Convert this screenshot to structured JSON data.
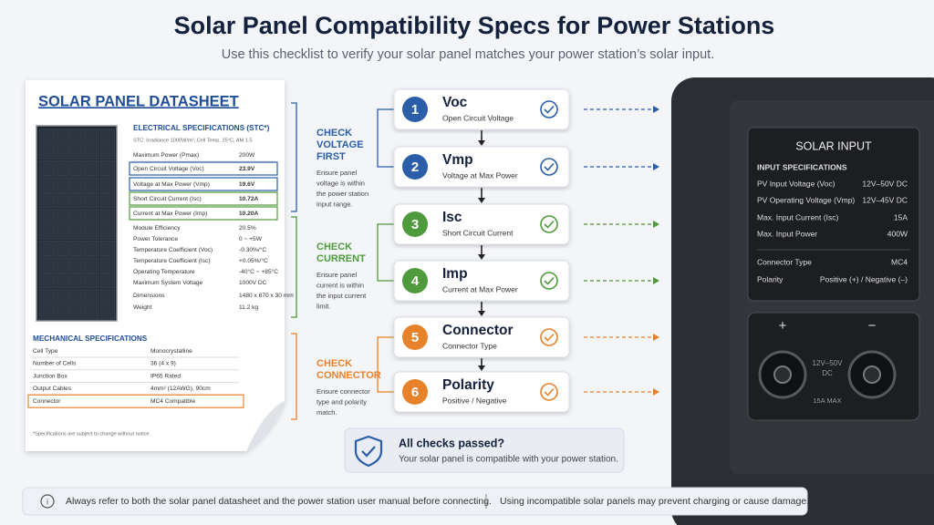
{
  "title": "Solar Panel Compatibility Specs for Power Stations",
  "subtitle": "Use this checklist to verify your solar panel matches your power station’s solar input.",
  "datasheet": {
    "title": "SOLAR PANEL DATASHEET",
    "electrical_heading": "ELECTRICAL SPECIFICATIONS (STC*)",
    "stc_note": "STC: Irradiance 1000W/m², Cell Temp. 25°C, AM 1.5",
    "electrical_rows": [
      [
        "Maximum Power (Pmax)",
        "200W"
      ],
      [
        "Open Circuit Voltage (Voc)",
        "23.9V"
      ],
      [
        "Voltage at Max Power (Vmp)",
        "19.6V"
      ],
      [
        "Short Circuit Current (Isc)",
        "10.72A"
      ],
      [
        "Current at Max Power (Imp)",
        "10.20A"
      ],
      [
        "Module Efficiency",
        "20.5%"
      ],
      [
        "Power Tolerance",
        "0 ~ +5W"
      ],
      [
        "Temperature Coefficient (Voc)",
        "-0.30%/°C"
      ],
      [
        "Temperature Coefficient (Isc)",
        "+0.05%/°C"
      ],
      [
        "Operating Temperature",
        "-40°C ~ +85°C"
      ],
      [
        "Maximum System Voltage",
        "1000V DC"
      ],
      [
        "Dimensions",
        "1480 x 670 x 30 mm"
      ],
      [
        "Weight",
        "11.2 kg"
      ]
    ],
    "mechanical_heading": "MECHANICAL SPECIFICATIONS",
    "mechanical_rows": [
      [
        "Cell Type",
        "Monocrystalline"
      ],
      [
        "Number of Cells",
        "36 (4 x 9)"
      ],
      [
        "Junction Box",
        "IP65 Rated"
      ],
      [
        "Output Cables",
        "4mm² (12AWG), 90cm"
      ],
      [
        "Connector",
        "MC4 Compatible"
      ]
    ],
    "footnote": "*Specifications are subject to change without notice."
  },
  "groups": [
    {
      "title": [
        "CHECK",
        "VOLTAGE",
        "FIRST"
      ],
      "text": [
        "Ensure panel",
        "voltage is within",
        "the power station",
        "input range."
      ],
      "color": "#2a5ea8"
    },
    {
      "title": [
        "CHECK",
        "CURRENT"
      ],
      "text": [
        "Ensure panel",
        "current is within",
        "the input current",
        "limit."
      ],
      "color": "#4f9a3c"
    },
    {
      "title": [
        "CHECK",
        "CONNECTOR"
      ],
      "text": [
        "Ensure connector",
        "type and polarity",
        "match."
      ],
      "color": "#e8822a"
    }
  ],
  "steps": [
    {
      "number": 1,
      "name": "Voc",
      "desc": "Open Circuit Voltage"
    },
    {
      "number": 2,
      "name": "Vmp",
      "desc": "Voltage at Max Power"
    },
    {
      "number": 3,
      "name": "Isc",
      "desc": "Short Circuit Current"
    },
    {
      "number": 4,
      "name": "Imp",
      "desc": "Current at Max Power"
    },
    {
      "number": 5,
      "name": "Connector",
      "desc": "Connector Type"
    },
    {
      "number": 6,
      "name": "Polarity",
      "desc": "Positive / Negative"
    }
  ],
  "result": {
    "title": "All checks passed?",
    "text": "Your solar panel is compatible with your power station."
  },
  "station": {
    "panel_title": "SOLAR INPUT",
    "spec_heading": "INPUT SPECIFICATIONS",
    "rows": [
      [
        "PV Input Voltage (Voc)",
        "12V–50V DC"
      ],
      [
        "PV Operating Voltage (Vmp)",
        "12V–45V DC"
      ],
      [
        "Max. Input Current (Isc)",
        "15A"
      ],
      [
        "Max. Input Power",
        "400W"
      ],
      [
        "Connector Type",
        "MC4"
      ],
      [
        "Polarity",
        "Positive (+) / Negative (–)"
      ]
    ],
    "plus": "+",
    "minus": "−",
    "port_label": [
      "12V–50V",
      "DC"
    ],
    "max_label": "15A MAX"
  },
  "footer": {
    "left": "Always refer to both the solar panel datasheet and the power station user manual before connecting.",
    "right": "Using incompatible solar panels may prevent charging or cause damage."
  }
}
